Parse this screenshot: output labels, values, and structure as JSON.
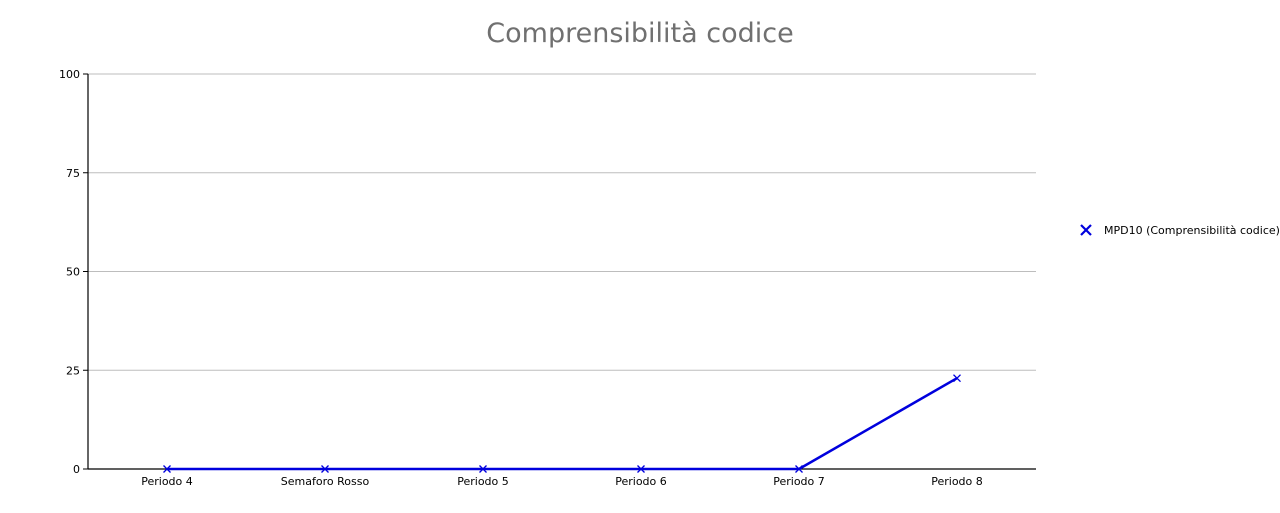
{
  "chart_data": {
    "type": "line",
    "title": "Comprensibilità codice",
    "xlabel": "",
    "ylabel": "",
    "categories": [
      "Periodo 4",
      "Semaforo Rosso",
      "Periodo 5",
      "Periodo 6",
      "Periodo 7",
      "Periodo 8"
    ],
    "series": [
      {
        "name": "MPD10 (Comprensibilità codice)",
        "values": [
          0,
          0,
          0,
          0,
          0,
          23
        ],
        "color": "#0000dd",
        "marker": "x"
      }
    ],
    "ylim": [
      0,
      100
    ],
    "yticks": [
      0,
      25,
      50,
      75,
      100
    ],
    "grid": true,
    "legend_position": "right"
  }
}
